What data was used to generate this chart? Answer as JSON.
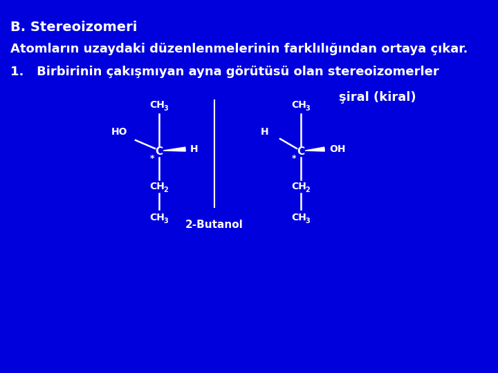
{
  "background_color": "#0000DD",
  "title": "B. Stereoizomeri",
  "subtitle": "Atomların uzaydaki düzenlenmelerinin farklılığından ortaya çıkar.",
  "point1": "1.   Birbirinin çakışmıyan ayna görütüsü olan stereoizomerler",
  "chiral_label": "şiral (kiral)",
  "label_2butanol": "2-Butanol",
  "text_color": "white",
  "title_fontsize": 14,
  "subtitle_fontsize": 13,
  "body_fontsize": 13,
  "chiral_fontsize": 13,
  "mol_fontsize": 10
}
